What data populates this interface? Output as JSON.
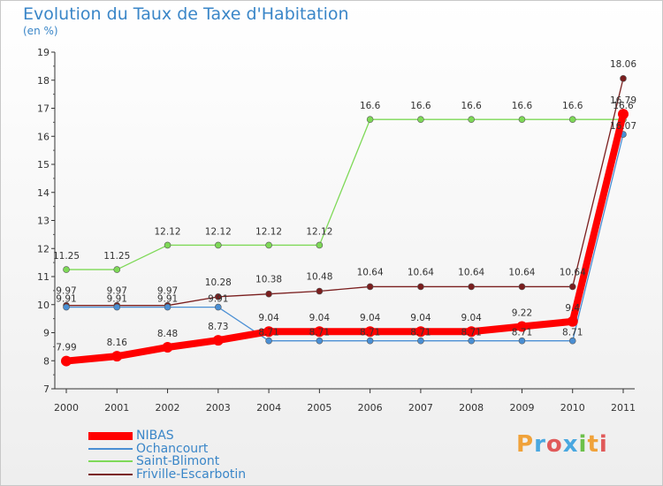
{
  "header": {
    "title": "Evolution du Taux de Taxe d'Habitation",
    "subtitle": "(en %)"
  },
  "brand": {
    "text": "Proxiti",
    "colors": [
      "#f0a23a",
      "#4aa8e0",
      "#e05a5a",
      "#4aa8e0",
      "#6cc04a",
      "#f0a23a",
      "#e05a5a"
    ]
  },
  "chart_data": {
    "type": "line",
    "x": [
      "2000",
      "2001",
      "2002",
      "2003",
      "2004",
      "2005",
      "2006",
      "2007",
      "2008",
      "2009",
      "2010",
      "2011"
    ],
    "ylim": [
      7,
      19
    ],
    "yticks": [
      7,
      8,
      9,
      10,
      11,
      12,
      13,
      14,
      15,
      16,
      17,
      18,
      19
    ],
    "grid": false,
    "legend_position": "bottom-left",
    "series": [
      {
        "name": "NIBAS",
        "color": "#ff0000",
        "values": [
          7.99,
          8.16,
          8.48,
          8.73,
          9.04,
          9.04,
          9.04,
          9.04,
          9.04,
          9.22,
          9.4,
          16.79
        ],
        "labels": [
          "7.99",
          "8.16",
          "8.48",
          "8.73",
          "9.04",
          "9.04",
          "9.04",
          "9.04",
          "9.04",
          "9.22",
          "9.4",
          "16.79"
        ]
      },
      {
        "name": "Ochancourt",
        "color": "#4a8fd4",
        "values": [
          9.91,
          9.91,
          9.91,
          9.91,
          8.71,
          8.71,
          8.71,
          8.71,
          8.71,
          8.71,
          8.71,
          16.07
        ],
        "labels": [
          "9.91",
          "9.91",
          "9.91",
          "9.91",
          "8.71",
          "8.71",
          "8.71",
          "8.71",
          "8.71",
          "8.71",
          "8.71",
          "16.07"
        ]
      },
      {
        "name": "Saint-Blimont",
        "color": "#7ed957",
        "values": [
          11.25,
          11.25,
          12.12,
          12.12,
          12.12,
          12.12,
          16.6,
          16.6,
          16.6,
          16.6,
          16.6,
          16.6
        ],
        "labels": [
          "11.25",
          "11.25",
          "12.12",
          "12.12",
          "12.12",
          "12.12",
          "16.6",
          "16.6",
          "16.6",
          "16.6",
          "16.6",
          "16.6"
        ]
      },
      {
        "name": "Friville-Escarbotin",
        "color": "#7a1e1e",
        "values": [
          9.97,
          9.97,
          9.97,
          10.28,
          10.38,
          10.48,
          10.64,
          10.64,
          10.64,
          10.64,
          10.64,
          18.06
        ],
        "labels": [
          "9.97",
          "9.97",
          "9.97",
          "10.28",
          "10.38",
          "10.48",
          "10.64",
          "10.64",
          "10.64",
          "10.64",
          "10.64",
          "18.06"
        ]
      }
    ]
  }
}
